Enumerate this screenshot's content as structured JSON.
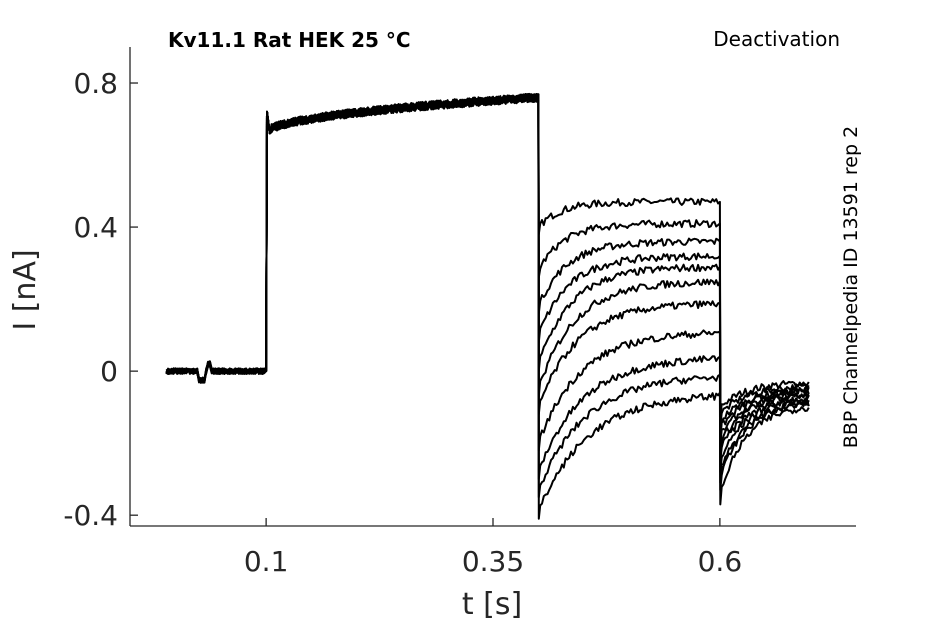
{
  "chart_data": {
    "type": "line",
    "title": "Kv11.1  Rat  HEK  25 °C",
    "protocol": "Deactivation",
    "source": "BBP Channelpedia ID 13591 rep 2",
    "xlabel": "t [s]",
    "ylabel": "I [nA]",
    "xlim": [
      -0.05,
      0.75
    ],
    "ylim": [
      -0.43,
      0.9
    ],
    "x_ticks": [
      0.1,
      0.35,
      0.6
    ],
    "x_tick_labels": [
      "0.1",
      "0.35",
      "0.6"
    ],
    "y_ticks": [
      -0.4,
      0,
      0.4,
      0.8
    ],
    "y_tick_labels": [
      "-0.4",
      "0",
      "0.4",
      "0.8"
    ],
    "grid": false,
    "segments": [
      {
        "start": -0.01,
        "end": 0.1,
        "level": 0
      },
      {
        "start": 0.1,
        "end": 0.4,
        "level_start": 0.66,
        "level_end": 0.76
      },
      {
        "start": 0.4,
        "end": 0.6
      },
      {
        "start": 0.6,
        "end": 0.7
      }
    ],
    "series": [
      {
        "values": {
          "step_end": 0.47,
          "min": 0.4,
          "tail_start": -0.1,
          "tail_end": -0.03
        }
      },
      {
        "values": {
          "step_end": 0.41,
          "min": 0.28,
          "tail_start": -0.12,
          "tail_end": -0.04
        }
      },
      {
        "values": {
          "step_end": 0.36,
          "min": 0.18,
          "tail_start": -0.14,
          "tail_end": -0.05
        }
      },
      {
        "values": {
          "step_end": 0.32,
          "min": 0.1,
          "tail_start": -0.16,
          "tail_end": -0.05
        }
      },
      {
        "values": {
          "step_end": 0.29,
          "min": 0.02,
          "tail_start": -0.18,
          "tail_end": -0.06
        }
      },
      {
        "values": {
          "step_end": 0.25,
          "min": -0.05,
          "tail_start": -0.2,
          "tail_end": -0.06
        }
      },
      {
        "values": {
          "step_end": 0.19,
          "min": -0.1,
          "tail_start": -0.22,
          "tail_end": -0.07
        }
      },
      {
        "values": {
          "step_end": 0.11,
          "min": -0.2,
          "tail_start": -0.25,
          "tail_end": -0.07
        }
      },
      {
        "values": {
          "step_end": 0.04,
          "min": -0.28,
          "tail_start": -0.28,
          "tail_end": -0.08
        }
      },
      {
        "values": {
          "step_end": -0.01,
          "min": -0.33,
          "tail_start": -0.3,
          "tail_end": -0.08
        }
      },
      {
        "values": {
          "step_end": -0.06,
          "min": -0.39,
          "tail_start": -0.34,
          "tail_end": -0.09
        }
      }
    ]
  }
}
